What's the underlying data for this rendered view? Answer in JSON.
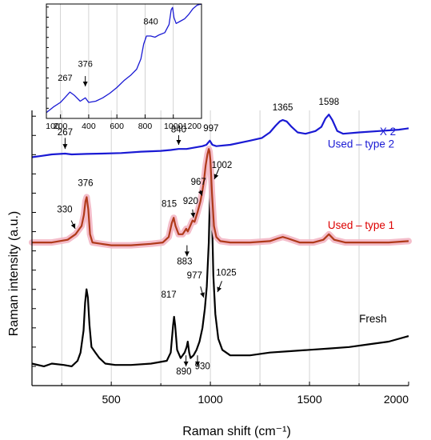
{
  "chart_data": [
    {
      "id": "main",
      "type": "line",
      "xlabel": "Raman shift (cm⁻¹)",
      "ylabel": "Raman intensity (a.u.)",
      "xlim": [
        100,
        2000
      ],
      "ylim": [
        0,
        100
      ],
      "x_ticks": [
        500,
        1000,
        1500,
        2000
      ],
      "x_minor": [
        250,
        750,
        1250,
        1750
      ],
      "y_ticks_labeled": false,
      "grid": "vertical",
      "series": [
        {
          "name": "Fresh",
          "color": "#000000",
          "points": [
            [
              100,
              8
            ],
            [
              160,
              7
            ],
            [
              200,
              8
            ],
            [
              260,
              7.5
            ],
            [
              300,
              7
            ],
            [
              330,
              9
            ],
            [
              345,
              12
            ],
            [
              360,
              20
            ],
            [
              368,
              30
            ],
            [
              375,
              35
            ],
            [
              382,
              32
            ],
            [
              390,
              22
            ],
            [
              400,
              14
            ],
            [
              420,
              12
            ],
            [
              440,
              10
            ],
            [
              470,
              8
            ],
            [
              520,
              7.5
            ],
            [
              600,
              7.5
            ],
            [
              700,
              8
            ],
            [
              780,
              9
            ],
            [
              800,
              12
            ],
            [
              812,
              22
            ],
            [
              817,
              25
            ],
            [
              822,
              22
            ],
            [
              832,
              13
            ],
            [
              850,
              10
            ],
            [
              870,
              12
            ],
            [
              880,
              14
            ],
            [
              886,
              16
            ],
            [
              893,
              12
            ],
            [
              900,
              10
            ],
            [
              915,
              11
            ],
            [
              930,
              13
            ],
            [
              945,
              16
            ],
            [
              960,
              21
            ],
            [
              972,
              28
            ],
            [
              982,
              36
            ],
            [
              992,
              52
            ],
            [
              998,
              70
            ],
            [
              1003,
              76
            ],
            [
              1008,
              62
            ],
            [
              1015,
              40
            ],
            [
              1025,
              26
            ],
            [
              1040,
              17
            ],
            [
              1060,
              13
            ],
            [
              1100,
              11
            ],
            [
              1200,
              11
            ],
            [
              1300,
              12
            ],
            [
              1400,
              12.5
            ],
            [
              1500,
              13
            ],
            [
              1600,
              13.5
            ],
            [
              1700,
              14
            ],
            [
              1800,
              15
            ],
            [
              1900,
              16
            ],
            [
              2000,
              18
            ]
          ]
        },
        {
          "name": "Used – type 1",
          "color": "#b03a1a",
          "band_color": "#f3b6c4",
          "points": [
            [
              100,
              52
            ],
            [
              200,
              52
            ],
            [
              280,
              53
            ],
            [
              320,
              55
            ],
            [
              340,
              57
            ],
            [
              350,
              58
            ],
            [
              362,
              62
            ],
            [
              370,
              67
            ],
            [
              376,
              68.5
            ],
            [
              384,
              64
            ],
            [
              393,
              55
            ],
            [
              405,
              52
            ],
            [
              450,
              51.5
            ],
            [
              500,
              51
            ],
            [
              600,
              51
            ],
            [
              700,
              51.5
            ],
            [
              760,
              52
            ],
            [
              790,
              54
            ],
            [
              805,
              59
            ],
            [
              815,
              61
            ],
            [
              824,
              58
            ],
            [
              840,
              55
            ],
            [
              860,
              55
            ],
            [
              878,
              57
            ],
            [
              886,
              56
            ],
            [
              895,
              57.5
            ],
            [
              910,
              60
            ],
            [
              920,
              59.5
            ],
            [
              935,
              63
            ],
            [
              950,
              67
            ],
            [
              960,
              71
            ],
            [
              967,
              74
            ],
            [
              976,
              80
            ],
            [
              985,
              84
            ],
            [
              992,
              86
            ],
            [
              996,
              85
            ],
            [
              1000,
              82
            ],
            [
              1008,
              70
            ],
            [
              1018,
              58
            ],
            [
              1030,
              54
            ],
            [
              1050,
              52.5
            ],
            [
              1100,
              52
            ],
            [
              1200,
              52
            ],
            [
              1300,
              52.5
            ],
            [
              1340,
              53.5
            ],
            [
              1365,
              54
            ],
            [
              1390,
              53.5
            ],
            [
              1450,
              52
            ],
            [
              1520,
              52
            ],
            [
              1570,
              53
            ],
            [
              1598,
              55
            ],
            [
              1625,
              53
            ],
            [
              1680,
              52
            ],
            [
              1800,
              52
            ],
            [
              1900,
              52
            ],
            [
              2000,
              52.5
            ]
          ]
        },
        {
          "name": "Used – type 2",
          "color": "#1a1ad4",
          "points": [
            [
              100,
              83
            ],
            [
              150,
              83.5
            ],
            [
              200,
              84
            ],
            [
              267,
              84.3
            ],
            [
              300,
              84
            ],
            [
              376,
              84.2
            ],
            [
              450,
              84.3
            ],
            [
              550,
              84.5
            ],
            [
              650,
              85
            ],
            [
              750,
              85.3
            ],
            [
              800,
              85.6
            ],
            [
              840,
              86
            ],
            [
              880,
              86
            ],
            [
              920,
              86.5
            ],
            [
              960,
              87
            ],
            [
              980,
              87.5
            ],
            [
              997,
              89
            ],
            [
              1010,
              87.5
            ],
            [
              1030,
              87
            ],
            [
              1100,
              87.5
            ],
            [
              1200,
              89
            ],
            [
              1260,
              90
            ],
            [
              1300,
              92
            ],
            [
              1330,
              94.5
            ],
            [
              1350,
              96
            ],
            [
              1365,
              96.5
            ],
            [
              1385,
              96
            ],
            [
              1410,
              94
            ],
            [
              1440,
              92
            ],
            [
              1480,
              91.5
            ],
            [
              1530,
              92.5
            ],
            [
              1560,
              94
            ],
            [
              1580,
              97
            ],
            [
              1598,
              98.5
            ],
            [
              1615,
              96.5
            ],
            [
              1640,
              92.5
            ],
            [
              1670,
              91.5
            ],
            [
              1750,
              92
            ],
            [
              1850,
              92.5
            ],
            [
              1950,
              93
            ],
            [
              2000,
              93.5
            ]
          ]
        }
      ],
      "series_labels": [
        {
          "text": "Fresh",
          "color": "#000000",
          "x": 1820,
          "y": 23
        },
        {
          "text": "Used – type 1",
          "color": "#dd0000",
          "x": 1760,
          "y": 57
        },
        {
          "text": "Used – type 2",
          "color": "#1a1ad4",
          "x": 1760,
          "y": 86.5
        },
        {
          "text": "X 2",
          "color": "#1a1ad4",
          "x": 1895,
          "y": 91
        }
      ],
      "annotations": [
        {
          "text": "267",
          "x": 267,
          "y": 91,
          "arrow": [
            [
              267,
              90
            ],
            [
              267,
              86
            ]
          ]
        },
        {
          "text": "840",
          "x": 840,
          "y": 92,
          "arrow": [
            [
              840,
              91
            ],
            [
              840,
              87.5
            ]
          ]
        },
        {
          "text": "997",
          "x": 1003,
          "y": 92.5
        },
        {
          "text": "1365",
          "x": 1365,
          "y": 100
        },
        {
          "text": "1598",
          "x": 1598,
          "y": 102
        },
        {
          "text": "376",
          "x": 370,
          "y": 72.5
        },
        {
          "text": "330",
          "x": 265,
          "y": 63,
          "arrow": [
            [
              298,
              60
            ],
            [
              318,
              57
            ]
          ]
        },
        {
          "text": "815",
          "x": 792,
          "y": 65
        },
        {
          "text": "883",
          "x": 870,
          "y": 44,
          "arrow": [
            [
              882,
              51
            ],
            [
              882,
              47
            ]
          ]
        },
        {
          "text": "920",
          "x": 900,
          "y": 66,
          "arrow": [
            [
              910,
              64
            ],
            [
              915,
              61
            ]
          ]
        },
        {
          "text": "967",
          "x": 940,
          "y": 73,
          "arrow": [
            [
              948,
              71
            ],
            [
              958,
              69
            ]
          ]
        },
        {
          "text": "1002",
          "x": 1058,
          "y": 79,
          "arrow": [
            [
              1044,
              79
            ],
            [
              1020,
              75
            ]
          ]
        },
        {
          "text": "817",
          "x": 790,
          "y": 32
        },
        {
          "text": "890",
          "x": 866,
          "y": 4,
          "arrow": [
            [
              877,
              11
            ],
            [
              877,
              7
            ]
          ]
        },
        {
          "text": "930",
          "x": 960,
          "y": 6,
          "arrow": [
            [
              935,
              11
            ],
            [
              935,
              7
            ]
          ]
        },
        {
          "text": "977",
          "x": 920,
          "y": 39,
          "arrow": [
            [
              950,
              36
            ],
            [
              966,
              32
            ]
          ]
        },
        {
          "text": "1025",
          "x": 1080,
          "y": 40,
          "arrow": [
            [
              1058,
              38
            ],
            [
              1036,
              34
            ]
          ]
        }
      ]
    },
    {
      "id": "inset",
      "type": "line",
      "xlim": [
        100,
        1200
      ],
      "ylim": [
        0,
        100
      ],
      "x_ticks": [
        200,
        400,
        600,
        800,
        1000,
        1200
      ],
      "x_tick_labels": [
        "200",
        "400",
        "600",
        "800",
        "1000",
        "1200"
      ],
      "x_edge_label": "100",
      "y_ticks_labeled": false,
      "grid": "vertical",
      "series": [
        {
          "color": "#1a1ad4",
          "points": [
            [
              100,
              5
            ],
            [
              150,
              10
            ],
            [
              200,
              14
            ],
            [
              230,
              18
            ],
            [
              267,
              23
            ],
            [
              300,
              20
            ],
            [
              340,
              15
            ],
            [
              376,
              18
            ],
            [
              400,
              14
            ],
            [
              450,
              15
            ],
            [
              500,
              18
            ],
            [
              550,
              22
            ],
            [
              600,
              27
            ],
            [
              650,
              33
            ],
            [
              700,
              38
            ],
            [
              740,
              43
            ],
            [
              770,
              52
            ],
            [
              790,
              65
            ],
            [
              810,
              72
            ],
            [
              840,
              72
            ],
            [
              870,
              71
            ],
            [
              900,
              73
            ],
            [
              940,
              75
            ],
            [
              970,
              82
            ],
            [
              985,
              95
            ],
            [
              995,
              97
            ],
            [
              1005,
              88
            ],
            [
              1020,
              83
            ],
            [
              1050,
              85
            ],
            [
              1080,
              87
            ],
            [
              1110,
              91
            ],
            [
              1140,
              96
            ],
            [
              1170,
              99
            ],
            [
              1200,
              100
            ]
          ]
        }
      ],
      "annotations": [
        {
          "text": "840",
          "x": 840,
          "y": 82
        },
        {
          "text": "267",
          "x": 233,
          "y": 33
        },
        {
          "text": "376",
          "x": 376,
          "y": 45,
          "arrow": [
            [
              376,
              37
            ],
            [
              376,
              28
            ]
          ]
        }
      ]
    }
  ]
}
